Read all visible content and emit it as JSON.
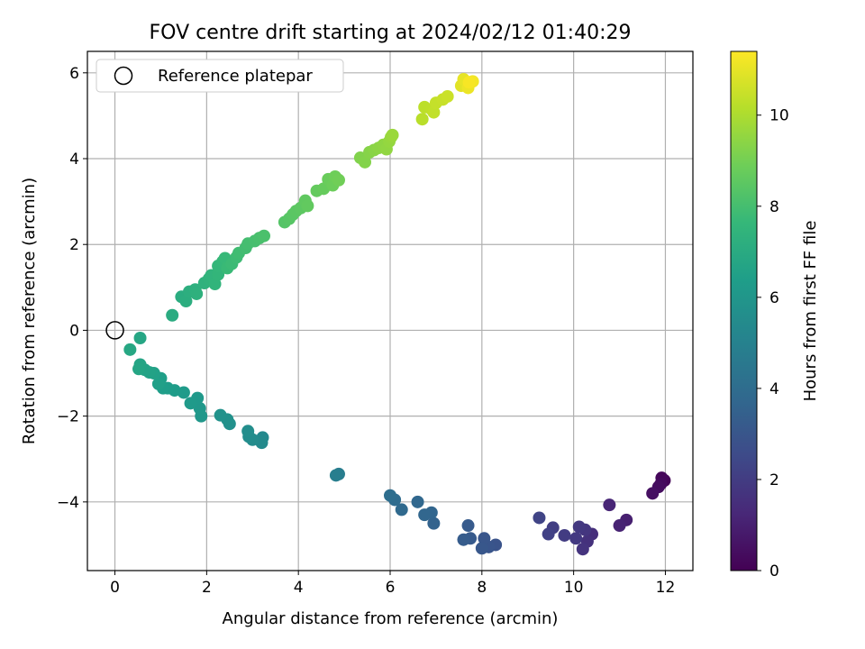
{
  "chart_data": {
    "type": "scatter",
    "title": "FOV centre drift starting at 2024/02/12 01:40:29",
    "xlabel": "Angular distance from reference (arcmin)",
    "ylabel": "Rotation from reference (arcmin)",
    "xlim": [
      -0.6,
      12.6
    ],
    "ylim": [
      -5.6,
      6.5
    ],
    "xticks": [
      0,
      2,
      4,
      6,
      8,
      10,
      12
    ],
    "xtick_labels": [
      "0",
      "2",
      "4",
      "6",
      "8",
      "10",
      "12"
    ],
    "yticks": [
      -4,
      -2,
      0,
      2,
      4,
      6
    ],
    "ytick_labels": [
      "−4",
      "−2",
      "0",
      "2",
      "4",
      "6"
    ],
    "grid": true,
    "legend": {
      "placement": "top-left",
      "entries": [
        {
          "label": "Reference platepar",
          "marker": "open-circle"
        }
      ]
    },
    "reference_point": {
      "x": 0,
      "y": 0
    },
    "colorbar": {
      "label": "Hours from first FF file",
      "colormap": "viridis",
      "range": [
        0,
        11.4
      ],
      "ticks": [
        0,
        2,
        4,
        6,
        8,
        10
      ],
      "tick_labels": [
        "0",
        "2",
        "4",
        "6",
        "8",
        "10"
      ]
    },
    "points": [
      {
        "x": 11.98,
        "y": -3.5,
        "t": 0.1
      },
      {
        "x": 11.92,
        "y": -3.44,
        "t": 0.2
      },
      {
        "x": 11.9,
        "y": -3.58,
        "t": 0.3
      },
      {
        "x": 11.85,
        "y": -3.65,
        "t": 0.4
      },
      {
        "x": 11.72,
        "y": -3.8,
        "t": 0.5
      },
      {
        "x": 11.15,
        "y": -4.42,
        "t": 1.0
      },
      {
        "x": 11.0,
        "y": -4.55,
        "t": 1.1
      },
      {
        "x": 10.78,
        "y": -4.07,
        "t": 1.2
      },
      {
        "x": 10.4,
        "y": -4.75,
        "t": 1.5
      },
      {
        "x": 10.3,
        "y": -4.92,
        "t": 1.6
      },
      {
        "x": 10.2,
        "y": -5.1,
        "t": 1.7
      },
      {
        "x": 10.25,
        "y": -4.65,
        "t": 1.8
      },
      {
        "x": 10.12,
        "y": -4.58,
        "t": 1.85
      },
      {
        "x": 10.05,
        "y": -4.85,
        "t": 1.9
      },
      {
        "x": 9.8,
        "y": -4.78,
        "t": 2.0
      },
      {
        "x": 9.55,
        "y": -4.6,
        "t": 2.1
      },
      {
        "x": 9.45,
        "y": -4.75,
        "t": 2.2
      },
      {
        "x": 9.25,
        "y": -4.37,
        "t": 2.3
      },
      {
        "x": 8.3,
        "y": -5.0,
        "t": 2.9
      },
      {
        "x": 8.15,
        "y": -5.05,
        "t": 3.0
      },
      {
        "x": 8.05,
        "y": -4.85,
        "t": 3.05
      },
      {
        "x": 8.0,
        "y": -5.08,
        "t": 3.1
      },
      {
        "x": 7.75,
        "y": -4.85,
        "t": 3.2
      },
      {
        "x": 7.7,
        "y": -4.55,
        "t": 3.25
      },
      {
        "x": 7.6,
        "y": -4.88,
        "t": 3.3
      },
      {
        "x": 6.95,
        "y": -4.5,
        "t": 3.6
      },
      {
        "x": 6.9,
        "y": -4.25,
        "t": 3.7
      },
      {
        "x": 6.75,
        "y": -4.3,
        "t": 3.75
      },
      {
        "x": 6.6,
        "y": -4.0,
        "t": 3.8
      },
      {
        "x": 6.25,
        "y": -4.18,
        "t": 3.9
      },
      {
        "x": 6.1,
        "y": -3.95,
        "t": 4.0
      },
      {
        "x": 6.0,
        "y": -3.85,
        "t": 4.1
      },
      {
        "x": 4.88,
        "y": -3.35,
        "t": 4.8
      },
      {
        "x": 4.82,
        "y": -3.38,
        "t": 4.85
      },
      {
        "x": 3.22,
        "y": -2.5,
        "t": 5.4
      },
      {
        "x": 3.2,
        "y": -2.62,
        "t": 5.45
      },
      {
        "x": 3.0,
        "y": -2.55,
        "t": 5.5
      },
      {
        "x": 2.92,
        "y": -2.48,
        "t": 5.55
      },
      {
        "x": 2.9,
        "y": -2.35,
        "t": 5.6
      },
      {
        "x": 2.5,
        "y": -2.18,
        "t": 5.7
      },
      {
        "x": 2.45,
        "y": -2.08,
        "t": 5.75
      },
      {
        "x": 2.3,
        "y": -1.98,
        "t": 5.8
      },
      {
        "x": 1.88,
        "y": -2.0,
        "t": 6.0
      },
      {
        "x": 1.85,
        "y": -1.82,
        "t": 6.05
      },
      {
        "x": 1.8,
        "y": -1.58,
        "t": 6.1
      },
      {
        "x": 1.65,
        "y": -1.7,
        "t": 6.15
      },
      {
        "x": 1.5,
        "y": -1.45,
        "t": 6.2
      },
      {
        "x": 1.3,
        "y": -1.4,
        "t": 6.25
      },
      {
        "x": 1.15,
        "y": -1.35,
        "t": 6.3
      },
      {
        "x": 1.05,
        "y": -1.35,
        "t": 6.35
      },
      {
        "x": 1.0,
        "y": -1.12,
        "t": 6.4
      },
      {
        "x": 0.95,
        "y": -1.25,
        "t": 6.45
      },
      {
        "x": 0.85,
        "y": -1.0,
        "t": 6.5
      },
      {
        "x": 0.75,
        "y": -0.98,
        "t": 6.55
      },
      {
        "x": 0.65,
        "y": -0.92,
        "t": 6.6
      },
      {
        "x": 0.55,
        "y": -0.8,
        "t": 6.65
      },
      {
        "x": 0.52,
        "y": -0.9,
        "t": 6.7
      },
      {
        "x": 0.55,
        "y": -0.18,
        "t": 6.75
      },
      {
        "x": 0.33,
        "y": -0.45,
        "t": 6.8
      },
      {
        "x": 1.25,
        "y": 0.35,
        "t": 7.0
      },
      {
        "x": 1.45,
        "y": 0.78,
        "t": 7.05
      },
      {
        "x": 1.55,
        "y": 0.68,
        "t": 7.1
      },
      {
        "x": 1.62,
        "y": 0.9,
        "t": 7.15
      },
      {
        "x": 1.75,
        "y": 0.95,
        "t": 7.2
      },
      {
        "x": 1.78,
        "y": 0.85,
        "t": 7.25
      },
      {
        "x": 1.95,
        "y": 1.1,
        "t": 7.3
      },
      {
        "x": 2.05,
        "y": 1.2,
        "t": 7.35
      },
      {
        "x": 2.1,
        "y": 1.28,
        "t": 7.4
      },
      {
        "x": 2.18,
        "y": 1.08,
        "t": 7.45
      },
      {
        "x": 2.25,
        "y": 1.3,
        "t": 7.5
      },
      {
        "x": 2.25,
        "y": 1.5,
        "t": 7.55
      },
      {
        "x": 2.35,
        "y": 1.6,
        "t": 7.6
      },
      {
        "x": 2.4,
        "y": 1.68,
        "t": 7.65
      },
      {
        "x": 2.45,
        "y": 1.45,
        "t": 7.7
      },
      {
        "x": 2.55,
        "y": 1.55,
        "t": 7.75
      },
      {
        "x": 2.65,
        "y": 1.7,
        "t": 7.8
      },
      {
        "x": 2.7,
        "y": 1.8,
        "t": 7.85
      },
      {
        "x": 2.85,
        "y": 1.92,
        "t": 7.9
      },
      {
        "x": 2.9,
        "y": 2.02,
        "t": 7.95
      },
      {
        "x": 3.05,
        "y": 2.08,
        "t": 8.0
      },
      {
        "x": 3.15,
        "y": 2.15,
        "t": 8.05
      },
      {
        "x": 3.25,
        "y": 2.2,
        "t": 8.1
      },
      {
        "x": 3.7,
        "y": 2.52,
        "t": 8.3
      },
      {
        "x": 3.8,
        "y": 2.6,
        "t": 8.35
      },
      {
        "x": 3.88,
        "y": 2.7,
        "t": 8.4
      },
      {
        "x": 3.95,
        "y": 2.78,
        "t": 8.45
      },
      {
        "x": 4.05,
        "y": 2.85,
        "t": 8.5
      },
      {
        "x": 4.15,
        "y": 3.02,
        "t": 8.55
      },
      {
        "x": 4.2,
        "y": 2.9,
        "t": 8.6
      },
      {
        "x": 4.4,
        "y": 3.25,
        "t": 8.65
      },
      {
        "x": 4.55,
        "y": 3.3,
        "t": 8.7
      },
      {
        "x": 4.65,
        "y": 3.52,
        "t": 8.75
      },
      {
        "x": 4.75,
        "y": 3.38,
        "t": 8.8
      },
      {
        "x": 4.8,
        "y": 3.58,
        "t": 8.85
      },
      {
        "x": 4.88,
        "y": 3.5,
        "t": 8.9
      },
      {
        "x": 5.35,
        "y": 4.02,
        "t": 9.2
      },
      {
        "x": 5.45,
        "y": 3.92,
        "t": 9.25
      },
      {
        "x": 5.55,
        "y": 4.15,
        "t": 9.3
      },
      {
        "x": 5.65,
        "y": 4.2,
        "t": 9.35
      },
      {
        "x": 5.75,
        "y": 4.25,
        "t": 9.4
      },
      {
        "x": 5.85,
        "y": 4.32,
        "t": 9.45
      },
      {
        "x": 5.92,
        "y": 4.22,
        "t": 9.5
      },
      {
        "x": 5.98,
        "y": 4.4,
        "t": 9.55
      },
      {
        "x": 6.02,
        "y": 4.5,
        "t": 9.6
      },
      {
        "x": 6.05,
        "y": 4.55,
        "t": 9.65
      },
      {
        "x": 6.7,
        "y": 4.92,
        "t": 10.2
      },
      {
        "x": 6.75,
        "y": 5.2,
        "t": 10.25
      },
      {
        "x": 6.9,
        "y": 5.15,
        "t": 10.3
      },
      {
        "x": 6.95,
        "y": 5.08,
        "t": 10.35
      },
      {
        "x": 7.0,
        "y": 5.3,
        "t": 10.4
      },
      {
        "x": 7.15,
        "y": 5.38,
        "t": 10.45
      },
      {
        "x": 7.25,
        "y": 5.45,
        "t": 10.5
      },
      {
        "x": 7.55,
        "y": 5.7,
        "t": 10.9
      },
      {
        "x": 7.6,
        "y": 5.85,
        "t": 11.0
      },
      {
        "x": 7.7,
        "y": 5.65,
        "t": 11.1
      },
      {
        "x": 7.8,
        "y": 5.8,
        "t": 11.2
      },
      {
        "x": 7.72,
        "y": 5.78,
        "t": 11.3
      }
    ]
  }
}
